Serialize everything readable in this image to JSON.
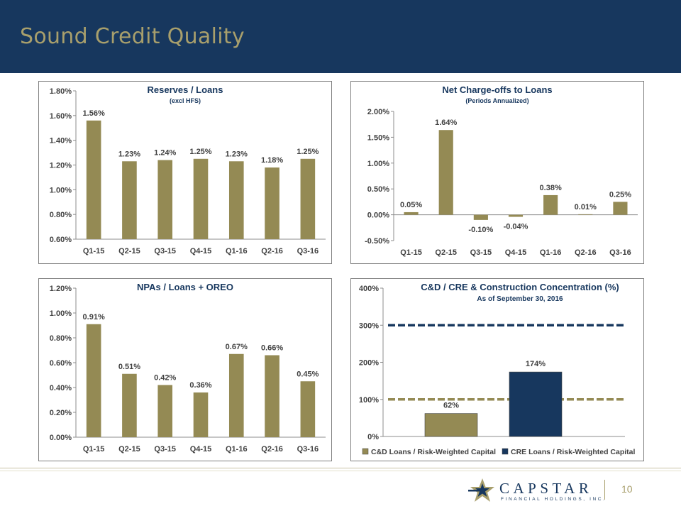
{
  "slide": {
    "title": "Sound Credit Quality",
    "page_number": "10"
  },
  "logo": {
    "name": "CAPSTAR",
    "sub": "FINANCIAL HOLDINGS, INC."
  },
  "colors": {
    "banner": "#17375e",
    "gold": "#a89f6c",
    "bar_gold": "#948a54",
    "bar_navy": "#17375e"
  },
  "chart_data": [
    {
      "id": "reserves",
      "type": "bar",
      "title": "Reserves / Loans",
      "subtitle": "(excl HFS)",
      "categories": [
        "Q1-15",
        "Q2-15",
        "Q3-15",
        "Q4-15",
        "Q1-16",
        "Q2-16",
        "Q3-16"
      ],
      "values": [
        1.56,
        1.23,
        1.24,
        1.25,
        1.23,
        1.18,
        1.25
      ],
      "labels": [
        "1.56%",
        "1.23%",
        "1.24%",
        "1.25%",
        "1.23%",
        "1.18%",
        "1.25%"
      ],
      "ylim": [
        0.6,
        1.8
      ],
      "yticks": [
        0.6,
        0.8,
        1.0,
        1.2,
        1.4,
        1.6,
        1.8
      ],
      "ytick_labels": [
        "0.60%",
        "0.80%",
        "1.00%",
        "1.20%",
        "1.40%",
        "1.60%",
        "1.80%"
      ],
      "grid": false
    },
    {
      "id": "chargeoffs",
      "type": "bar",
      "title": "Net Charge-offs to Loans",
      "subtitle": "(Periods Annualized)",
      "categories": [
        "Q1-15",
        "Q2-15",
        "Q3-15",
        "Q4-15",
        "Q1-16",
        "Q2-16",
        "Q3-16"
      ],
      "values": [
        0.05,
        1.64,
        -0.1,
        -0.04,
        0.38,
        0.01,
        0.25
      ],
      "labels": [
        "0.05%",
        "1.64%",
        "-0.10%",
        "-0.04%",
        "0.38%",
        "0.01%",
        "0.25%"
      ],
      "ylim": [
        -0.5,
        2.0
      ],
      "yticks": [
        -0.5,
        0.0,
        0.5,
        1.0,
        1.5,
        2.0
      ],
      "ytick_labels": [
        "-0.50%",
        "0.00%",
        "0.50%",
        "1.00%",
        "1.50%",
        "2.00%"
      ],
      "grid": false
    },
    {
      "id": "npas",
      "type": "bar",
      "title": "NPAs / Loans + OREO",
      "subtitle": "",
      "categories": [
        "Q1-15",
        "Q2-15",
        "Q3-15",
        "Q4-15",
        "Q1-16",
        "Q2-16",
        "Q3-16"
      ],
      "values": [
        0.91,
        0.51,
        0.42,
        0.36,
        0.67,
        0.66,
        0.45
      ],
      "labels": [
        "0.91%",
        "0.51%",
        "0.42%",
        "0.36%",
        "0.67%",
        "0.66%",
        "0.45%"
      ],
      "ylim": [
        0.0,
        1.2
      ],
      "yticks": [
        0.0,
        0.2,
        0.4,
        0.6,
        0.8,
        1.0,
        1.2
      ],
      "ytick_labels": [
        "0.00%",
        "0.20%",
        "0.40%",
        "0.60%",
        "0.80%",
        "1.00%",
        "1.20%"
      ],
      "grid": false
    },
    {
      "id": "concentration",
      "type": "bar",
      "title": "C&D / CRE & Construction Concentration (%)",
      "subtitle": "As of September 30, 2016",
      "series": [
        {
          "name": "C&D Loans / Risk-Weighted Capital",
          "values": [
            62
          ],
          "label": "62%",
          "color": "#948a54",
          "limit": 100
        },
        {
          "name": "CRE Loans / Risk-Weighted Capital",
          "values": [
            174
          ],
          "label": "174%",
          "color": "#17375e",
          "limit": 300
        }
      ],
      "ylim": [
        0,
        400
      ],
      "yticks": [
        0,
        100,
        200,
        300,
        400
      ],
      "ytick_labels": [
        "0%",
        "100%",
        "200%",
        "300%",
        "400%"
      ],
      "legend": "bottom",
      "grid": false
    }
  ]
}
